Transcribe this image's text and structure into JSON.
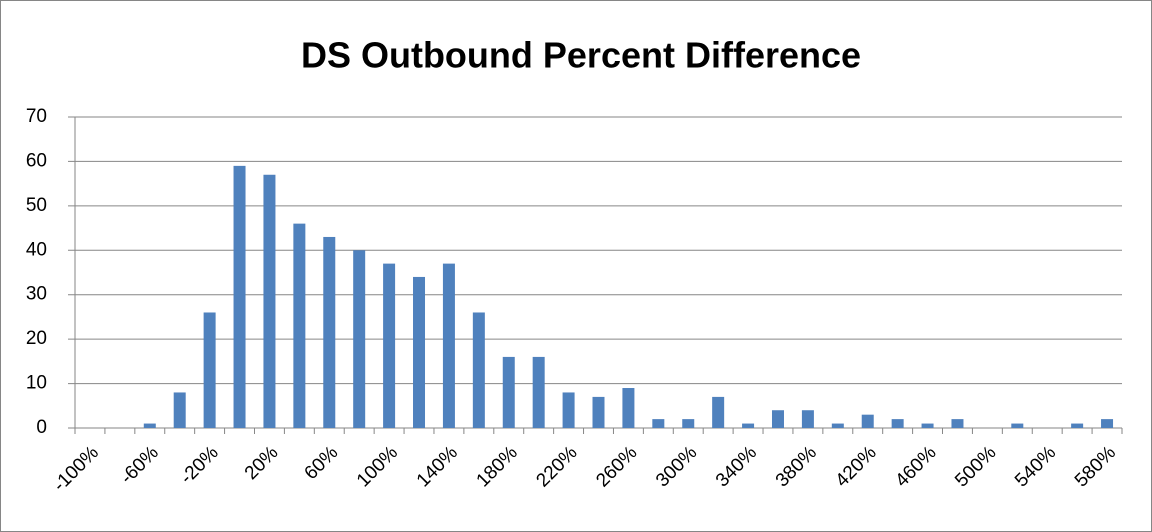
{
  "chart_data": {
    "type": "bar",
    "title": "DS Outbound Percent Difference",
    "categories": [
      "-100%",
      null,
      "-60%",
      null,
      "-20%",
      null,
      "20%",
      null,
      "60%",
      null,
      "100%",
      null,
      "140%",
      null,
      "180%",
      null,
      "220%",
      null,
      "260%",
      null,
      "300%",
      null,
      "340%",
      null,
      "380%",
      null,
      "420%",
      null,
      "460%",
      null,
      "500%",
      null,
      "540%",
      null,
      "580%"
    ],
    "values": [
      0,
      0,
      1,
      8,
      26,
      59,
      57,
      46,
      43,
      40,
      37,
      34,
      37,
      26,
      16,
      16,
      8,
      7,
      9,
      2,
      2,
      7,
      1,
      4,
      4,
      1,
      3,
      2,
      1,
      2,
      0,
      1,
      0,
      1,
      2
    ],
    "color": "#4f81bd",
    "ylim": [
      0,
      70
    ],
    "yticks": [
      0,
      10,
      20,
      30,
      40,
      50,
      60,
      70
    ],
    "grid": true
  }
}
